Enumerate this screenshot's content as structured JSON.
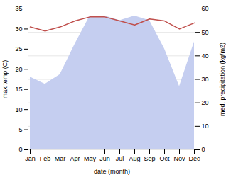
{
  "chart_data": {
    "type": "line",
    "xlabel": "date (month)",
    "ylabel": "max temp (C)",
    "y2label": "med. precipitation (kg/m2)",
    "categories": [
      "Jan",
      "Feb",
      "Mar",
      "Apr",
      "May",
      "Jun",
      "Jul",
      "Aug",
      "Sep",
      "Oct",
      "Nov",
      "Dec"
    ],
    "series": [
      {
        "type": "area",
        "axis": "y2",
        "color": "#c5cef0",
        "values": [
          31.0,
          28.0,
          32.0,
          45.0,
          57.0,
          57.0,
          55.0,
          57.0,
          55.0,
          43.0,
          27.0,
          46.0
        ]
      },
      {
        "type": "line",
        "color": "#c0504d",
        "values": [
          30.5,
          29.5,
          30.5,
          32.0,
          33.0,
          33.0,
          32.0,
          31.0,
          32.5,
          32.0,
          30.0,
          31.5
        ]
      }
    ],
    "ylim": [
      0,
      35
    ],
    "yticks": [
      0,
      5,
      10,
      15,
      20,
      25,
      30,
      35
    ],
    "y2lim": [
      0,
      60
    ],
    "y2ticks": [
      0,
      10,
      20,
      30,
      40,
      50,
      60
    ],
    "grid": true
  }
}
